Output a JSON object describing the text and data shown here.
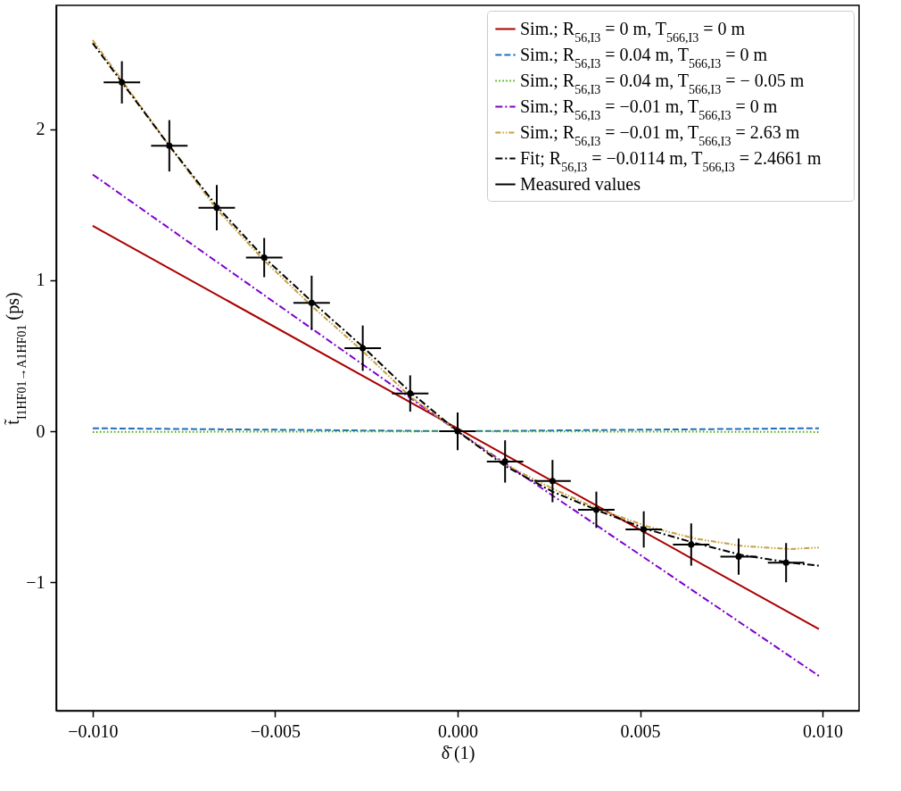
{
  "chart_data": {
    "type": "line",
    "xlabel": "δ̄ (1)",
    "ylabel": "t̃$_{I1HF01→A1HF01}$  (ps)",
    "xlim": [
      -0.011,
      0.011
    ],
    "ylim": [
      -1.85,
      2.82
    ],
    "xticks": [
      {
        "value": -0.01,
        "label": "−0.010"
      },
      {
        "value": -0.005,
        "label": "−0.005"
      },
      {
        "value": 0,
        "label": "0.000"
      },
      {
        "value": 0.005,
        "label": "0.005"
      },
      {
        "value": 0.01,
        "label": "0.010"
      }
    ],
    "yticks": [
      -1,
      0,
      1,
      2
    ],
    "legend": "top right",
    "series": [
      {
        "name": "Sim.; R$_{56,I3}$ = 0 m, T$_{566,I3}$ = 0 m",
        "line_style": "solid",
        "color": "#aa0000",
        "x": [
          -0.01,
          0.0099
        ],
        "values": [
          1.36,
          -1.31
        ]
      },
      {
        "name": "Sim.; R$_{56,I3}$ = 0.04 m, T$_{566,I3}$ = 0 m",
        "line_style": "dashed",
        "color": "#1f6fbf",
        "x": [
          -0.01,
          0,
          0.0099
        ],
        "values": [
          0.02,
          0,
          0.02
        ]
      },
      {
        "name": "Sim.; R$_{56,I3}$ = 0.04 m, T$_{566,I3}$ = − 0.05 m",
        "line_style": "dotted",
        "color": "#44aa00",
        "x": [
          -0.01,
          0,
          0.0099
        ],
        "values": [
          -0.005,
          0,
          -0.005
        ]
      },
      {
        "name": "Sim.; R$_{56,I3}$ = −0.01 m, T$_{566,I3}$ = 0 m",
        "line_style": "dashdot",
        "color": "#7f00cc",
        "x": [
          -0.01,
          0,
          0.0099
        ],
        "values": [
          1.7,
          0,
          -1.62
        ]
      },
      {
        "name": "Sim.; R$_{56,I3}$ = −0.01 m, T$_{566,I3}$ = 2.63 m",
        "line_style": "dashdotdot",
        "color": "#c8a040",
        "x": [
          -0.01,
          -0.0079,
          -0.0066,
          -0.0053,
          -0.004,
          -0.0026,
          -0.0013,
          0,
          0.0013,
          0.0026,
          0.0039,
          0.0052,
          0.0065,
          0.0078,
          0.0091,
          0.0099
        ],
        "values": [
          2.59,
          1.89,
          1.47,
          1.13,
          0.83,
          0.53,
          0.23,
          0,
          -0.22,
          -0.38,
          -0.52,
          -0.63,
          -0.71,
          -0.76,
          -0.78,
          -0.77
        ]
      },
      {
        "name": "Fit; R$_{56,I3}$ = −0.0114 m, T$_{566,I3}$ = 2.4661 m",
        "line_style": "dashdot",
        "color": "#000000",
        "x": [
          -0.01,
          -0.0079,
          -0.0066,
          -0.0053,
          -0.004,
          -0.0026,
          -0.0013,
          0,
          0.0013,
          0.0026,
          0.0039,
          0.0052,
          0.0065,
          0.0078,
          0.0091,
          0.0099
        ],
        "values": [
          2.57,
          1.89,
          1.49,
          1.15,
          0.86,
          0.56,
          0.26,
          0,
          -0.23,
          -0.4,
          -0.53,
          -0.65,
          -0.74,
          -0.82,
          -0.87,
          -0.89
        ]
      },
      {
        "name": "Measured values",
        "type": "scatter",
        "marker": "circle",
        "color": "#000000",
        "x": [
          -0.0092,
          -0.0079,
          -0.0066,
          -0.0053,
          -0.004,
          -0.0026,
          -0.0013,
          0,
          0.0013,
          0.0026,
          0.0038,
          0.0051,
          0.0064,
          0.0077,
          0.009
        ],
        "values": [
          2.31,
          1.89,
          1.48,
          1.15,
          0.85,
          0.55,
          0.25,
          0,
          -0.2,
          -0.33,
          -0.52,
          -0.65,
          -0.75,
          -0.83,
          -0.87
        ],
        "errors": [
          0.14,
          0.17,
          0.15,
          0.13,
          0.18,
          0.15,
          0.12,
          0.125,
          0.14,
          0.14,
          0.12,
          0.12,
          0.14,
          0.12,
          0.13
        ],
        "xerrors": [
          0.0005,
          0.0005,
          0.0005,
          0.0005,
          0.0005,
          0.0005,
          0.0005,
          0.0005,
          0.0005,
          0.0005,
          0.0005,
          0.0005,
          0.0005,
          0.0005,
          0.0005
        ]
      }
    ]
  }
}
